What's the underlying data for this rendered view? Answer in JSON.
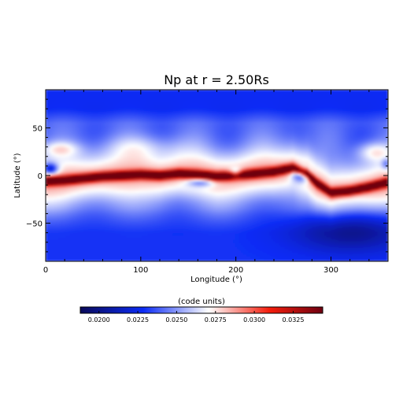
{
  "chart_data": {
    "type": "heatmap",
    "title": "Np at r = 2.50Rs",
    "xlabel": "Longitude (°)",
    "ylabel": "Latitude (°)",
    "xlim": [
      0,
      360
    ],
    "ylim": [
      -90,
      90
    ],
    "x_ticks": [
      0,
      100,
      200,
      300
    ],
    "y_ticks": [
      -50,
      0,
      50
    ],
    "x_tick_labels": [
      "0",
      "100",
      "200",
      "300"
    ],
    "y_tick_labels": [
      "−50",
      "0",
      "50"
    ],
    "grid": false,
    "colorbar": {
      "label": "(code units)",
      "range": [
        0.0188,
        0.0344
      ],
      "ticks": [
        0.02,
        0.0225,
        0.025,
        0.0275,
        0.03,
        0.0325
      ],
      "tick_labels": [
        "0.0200",
        "0.0225",
        "0.0250",
        "0.0275",
        "0.0300",
        "0.0325"
      ],
      "colormap": [
        "#0a0a5a",
        "#0b2bf5",
        "#ffffff",
        "#f41d0c",
        "#6e0010"
      ]
    },
    "features": {
      "current_sheet_latitude_by_longitude": [
        [
          0,
          -6
        ],
        [
          20,
          -5
        ],
        [
          40,
          -3
        ],
        [
          60,
          -1
        ],
        [
          80,
          0
        ],
        [
          100,
          1
        ],
        [
          120,
          0
        ],
        [
          140,
          2
        ],
        [
          160,
          1
        ],
        [
          180,
          -1
        ],
        [
          200,
          0
        ],
        [
          220,
          2
        ],
        [
          240,
          4
        ],
        [
          260,
          8
        ],
        [
          275,
          2
        ],
        [
          285,
          -8
        ],
        [
          300,
          -18
        ],
        [
          320,
          -16
        ],
        [
          340,
          -12
        ],
        [
          360,
          -7
        ]
      ],
      "background_level": 0.024,
      "sheet_peak_level": 0.033,
      "south_minimum_level": 0.021
    }
  }
}
